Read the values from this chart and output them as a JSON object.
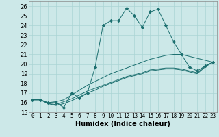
{
  "title": "",
  "xlabel": "Humidex (Indice chaleur)",
  "ylabel": "",
  "background_color": "#cce8e8",
  "line_color": "#1a6e6e",
  "xlim": [
    -0.5,
    23.5
  ],
  "ylim": [
    15,
    26.5
  ],
  "yticks": [
    15,
    16,
    17,
    18,
    19,
    20,
    21,
    22,
    23,
    24,
    25,
    26
  ],
  "xticks": [
    0,
    1,
    2,
    3,
    4,
    5,
    6,
    7,
    8,
    9,
    10,
    11,
    12,
    13,
    14,
    15,
    16,
    17,
    18,
    19,
    20,
    21,
    22,
    23
  ],
  "series": [
    [
      16.3,
      16.3,
      16.0,
      16.0,
      15.5,
      17.0,
      16.5,
      17.0,
      19.7,
      24.0,
      24.5,
      24.5,
      25.8,
      25.0,
      23.8,
      25.4,
      25.7,
      24.0,
      22.3,
      21.0,
      19.7,
      19.3,
      19.8,
      20.2
    ],
    [
      16.3,
      16.3,
      16.0,
      16.1,
      16.3,
      16.8,
      17.3,
      17.8,
      18.2,
      18.6,
      19.0,
      19.3,
      19.6,
      19.9,
      20.2,
      20.5,
      20.7,
      20.9,
      21.0,
      21.0,
      20.8,
      20.6,
      20.4,
      20.2
    ],
    [
      16.3,
      16.3,
      15.9,
      15.8,
      16.1,
      16.4,
      16.8,
      17.2,
      17.5,
      17.8,
      18.1,
      18.4,
      18.7,
      18.9,
      19.1,
      19.4,
      19.5,
      19.6,
      19.6,
      19.5,
      19.3,
      19.1,
      19.8,
      20.2
    ],
    [
      16.3,
      16.3,
      15.9,
      15.7,
      15.9,
      16.2,
      16.6,
      17.0,
      17.3,
      17.7,
      18.0,
      18.3,
      18.6,
      18.8,
      19.0,
      19.3,
      19.4,
      19.5,
      19.5,
      19.4,
      19.2,
      19.0,
      19.7,
      20.2
    ]
  ],
  "marker": "D",
  "marker_size": 2.2,
  "grid_color": "#aad4d4",
  "spine_color": "#888888",
  "xlabel_fontsize": 7,
  "tick_fontsize": 5.5
}
